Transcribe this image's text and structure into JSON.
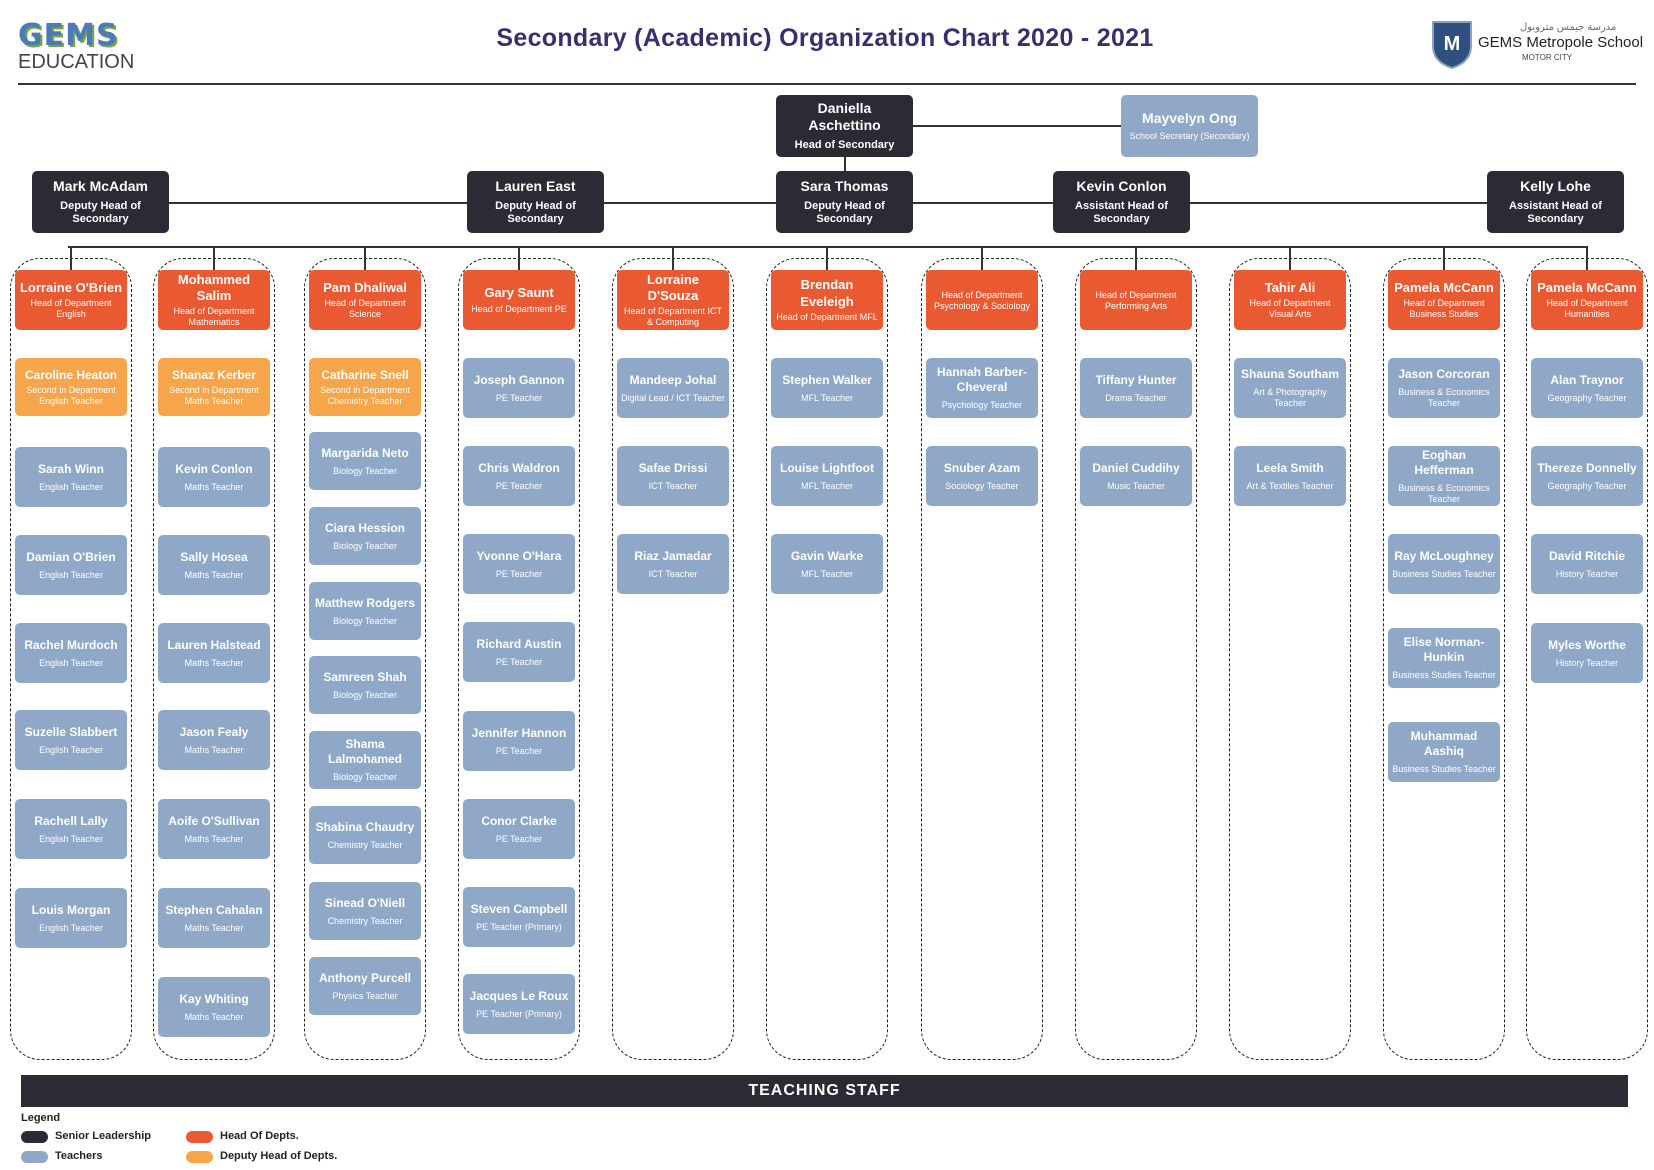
{
  "header": {
    "title": "Secondary (Academic) Organization Chart 2020 - 2021",
    "brand_left_mark": "GEMS",
    "brand_left_text": "EDUCATION",
    "brand_right_name": "GEMS Metropole School",
    "brand_right_sub": "MOTOR CITY",
    "brand_right_arabic": "مدرسة جيمس متروبول"
  },
  "top": {
    "head": {
      "name": "Daniella Aschettino",
      "role": "Head of Secondary"
    },
    "secretary": {
      "name": "Mayvelyn Ong",
      "role": "School Secretary (Secondary)"
    }
  },
  "leaders": [
    {
      "name": "Mark McAdam",
      "role": "Deputy Head of Secondary"
    },
    {
      "name": "Lauren East",
      "role": "Deputy Head of Secondary"
    },
    {
      "name": "Sara Thomas",
      "role": "Deputy Head of Secondary"
    },
    {
      "name": "Kevin Conlon",
      "role": "Assistant Head of Secondary"
    },
    {
      "name": "Kelly Lohe",
      "role": "Assistant Head of Secondary"
    }
  ],
  "departments": [
    {
      "head": {
        "name": "Lorraine O'Brien",
        "role": "Head of Department English"
      },
      "deputy": {
        "name": "Caroline Heaton",
        "role": "Second in Department English Teacher"
      },
      "teachers": [
        {
          "name": "Sarah Winn",
          "role": "English Teacher"
        },
        {
          "name": "Damian O'Brien",
          "role": "English Teacher"
        },
        {
          "name": "Rachel Murdoch",
          "role": "English Teacher"
        },
        {
          "name": "Suzelle Slabbert",
          "role": "English Teacher"
        },
        {
          "name": "Rachell Lally",
          "role": "English Teacher"
        },
        {
          "name": "Louis Morgan",
          "role": "English Teacher"
        }
      ]
    },
    {
      "head": {
        "name": "Mohammed Salim",
        "role": "Head of Department Mathematics"
      },
      "deputy": {
        "name": "Shanaz Kerber",
        "role": "Second in Department Maths Teacher"
      },
      "teachers": [
        {
          "name": "Kevin Conlon",
          "role": "Maths Teacher"
        },
        {
          "name": "Sally Hosea",
          "role": "Maths Teacher"
        },
        {
          "name": "Lauren Halstead",
          "role": "Maths Teacher"
        },
        {
          "name": "Jason Fealy",
          "role": "Maths Teacher"
        },
        {
          "name": "Aoife O'Sullivan",
          "role": "Maths Teacher"
        },
        {
          "name": "Stephen Cahalan",
          "role": "Maths Teacher"
        },
        {
          "name": "Kay Whiting",
          "role": "Maths Teacher"
        }
      ]
    },
    {
      "head": {
        "name": "Pam Dhaliwal",
        "role": "Head of Department Science"
      },
      "deputy": {
        "name": "Catharine Snell",
        "role": "Second in Department Chemistry Teacher"
      },
      "teachers": [
        {
          "name": "Margarida Neto",
          "role": "Biology Teacher"
        },
        {
          "name": "Ciara Hession",
          "role": "Biology Teacher"
        },
        {
          "name": "Matthew Rodgers",
          "role": "Biology Teacher"
        },
        {
          "name": "Samreen Shah",
          "role": "Biology Teacher"
        },
        {
          "name": "Shama Lalmohamed",
          "role": "Biology Teacher"
        },
        {
          "name": "Shabina Chaudry",
          "role": "Chemistry Teacher"
        },
        {
          "name": "Sinead O'Niell",
          "role": "Chemistry Teacher"
        },
        {
          "name": "Anthony Purcell",
          "role": "Physics Teacher"
        }
      ]
    },
    {
      "head": {
        "name": "Gary Saunt",
        "role": "Head of Department PE"
      },
      "teachers": [
        {
          "name": "Joseph Gannon",
          "role": "PE Teacher"
        },
        {
          "name": "Chris Waldron",
          "role": "PE Teacher"
        },
        {
          "name": "Yvonne O'Hara",
          "role": "PE Teacher"
        },
        {
          "name": "Richard Austin",
          "role": "PE Teacher"
        },
        {
          "name": "Jennifer Hannon",
          "role": "PE Teacher"
        },
        {
          "name": "Conor Clarke",
          "role": "PE Teacher"
        },
        {
          "name": "Steven Campbell",
          "role": "PE Teacher (Primary)"
        },
        {
          "name": "Jacques Le Roux",
          "role": "PE Teacher (Primary)"
        }
      ]
    },
    {
      "head": {
        "name": "Lorraine D'Souza",
        "role": "Head of Department ICT & Computing"
      },
      "teachers": [
        {
          "name": "Mandeep Johal",
          "role": "Digital Lead / ICT Teacher"
        },
        {
          "name": "Safae Drissi",
          "role": "ICT Teacher"
        },
        {
          "name": "Riaz Jamadar",
          "role": "ICT Teacher"
        }
      ]
    },
    {
      "head": {
        "name": "Brendan Eveleigh",
        "role": "Head of Department MFL"
      },
      "teachers": [
        {
          "name": "Stephen Walker",
          "role": "MFL Teacher"
        },
        {
          "name": "Louise Lightfoot",
          "role": "MFL Teacher"
        },
        {
          "name": "Gavin Warke",
          "role": "MFL Teacher"
        }
      ]
    },
    {
      "head": {
        "name": "",
        "role": "Head of Department Psychology & Sociology"
      },
      "teachers": [
        {
          "name": "Hannah Barber-Cheveral",
          "role": "Psychology Teacher"
        },
        {
          "name": "Snuber Azam",
          "role": "Sociology Teacher"
        }
      ]
    },
    {
      "head": {
        "name": "",
        "role": "Head of Department Performing Arts"
      },
      "teachers": [
        {
          "name": "Tiffany Hunter",
          "role": "Drama Teacher"
        },
        {
          "name": "Daniel Cuddihy",
          "role": "Music Teacher"
        }
      ]
    },
    {
      "head": {
        "name": "Tahir Ali",
        "role": "Head of Department Visual Arts"
      },
      "teachers": [
        {
          "name": "Shauna Southam",
          "role": "Art & Photography Teacher"
        },
        {
          "name": "Leela Smith",
          "role": "Art & Textiles Teacher"
        }
      ]
    },
    {
      "head": {
        "name": "Pamela McCann",
        "role": "Head of Department Business Studies"
      },
      "teachers": [
        {
          "name": "Jason Corcoran",
          "role": "Business & Economics Teacher"
        },
        {
          "name": "Eoghan Hefferman",
          "role": "Business & Economics Teacher"
        },
        {
          "name": "Ray McLoughney",
          "role": "Business Studies Teacher"
        },
        {
          "name": "Elise Norman-Hunkin",
          "role": "Business Studies Teacher"
        },
        {
          "name": "Muhammad Aashiq",
          "role": "Business Studies Teacher"
        }
      ]
    },
    {
      "head": {
        "name": "Pamela McCann",
        "role": "Head of Department Humanities"
      },
      "teachers": [
        {
          "name": "Alan Traynor",
          "role": "Geography Teacher"
        },
        {
          "name": "Thereze Donnelly",
          "role": "Geography Teacher"
        },
        {
          "name": "David Ritchie",
          "role": "History Teacher"
        },
        {
          "name": "Myles Worthe",
          "role": "History Teacher"
        }
      ]
    }
  ],
  "footer": {
    "teaching_staff_label": "TEACHING STAFF"
  },
  "legend": {
    "title": "Legend",
    "items": [
      {
        "label": "Senior Leadership",
        "color": "#2b2a35"
      },
      {
        "label": "Head Of Depts.",
        "color": "#e95a32"
      },
      {
        "label": "Teachers",
        "color": "#8fa8c8"
      },
      {
        "label": "Deputy Head of Depts.",
        "color": "#f7a54a"
      }
    ]
  }
}
